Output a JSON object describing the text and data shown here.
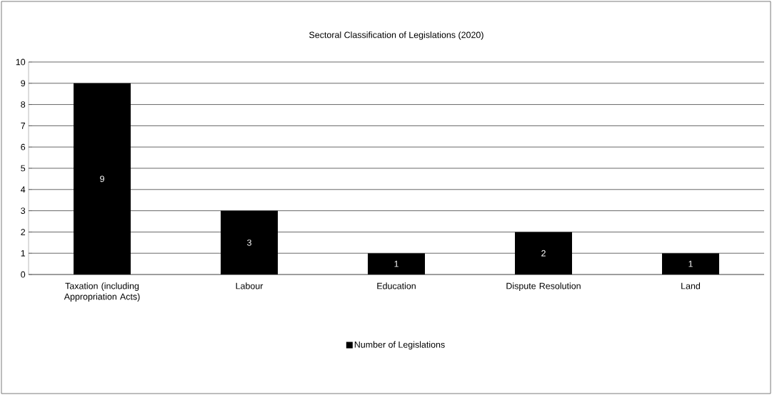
{
  "chart_data": {
    "type": "bar",
    "title": "Sectoral Classification of Legislations (2020)",
    "categories": [
      "Taxation (including Appropriation Acts)",
      "Labour",
      "Education",
      "Dispute Resolution",
      "Land"
    ],
    "series": [
      {
        "name": "Number of Legislations",
        "color": "#000000",
        "values": [
          9,
          3,
          1,
          2,
          1
        ]
      }
    ],
    "ylim": [
      0,
      10
    ],
    "yticks": [
      0,
      1,
      2,
      3,
      4,
      5,
      6,
      7,
      8,
      9,
      10
    ],
    "grid": "y",
    "legend": "bottom",
    "data_labels": true
  }
}
